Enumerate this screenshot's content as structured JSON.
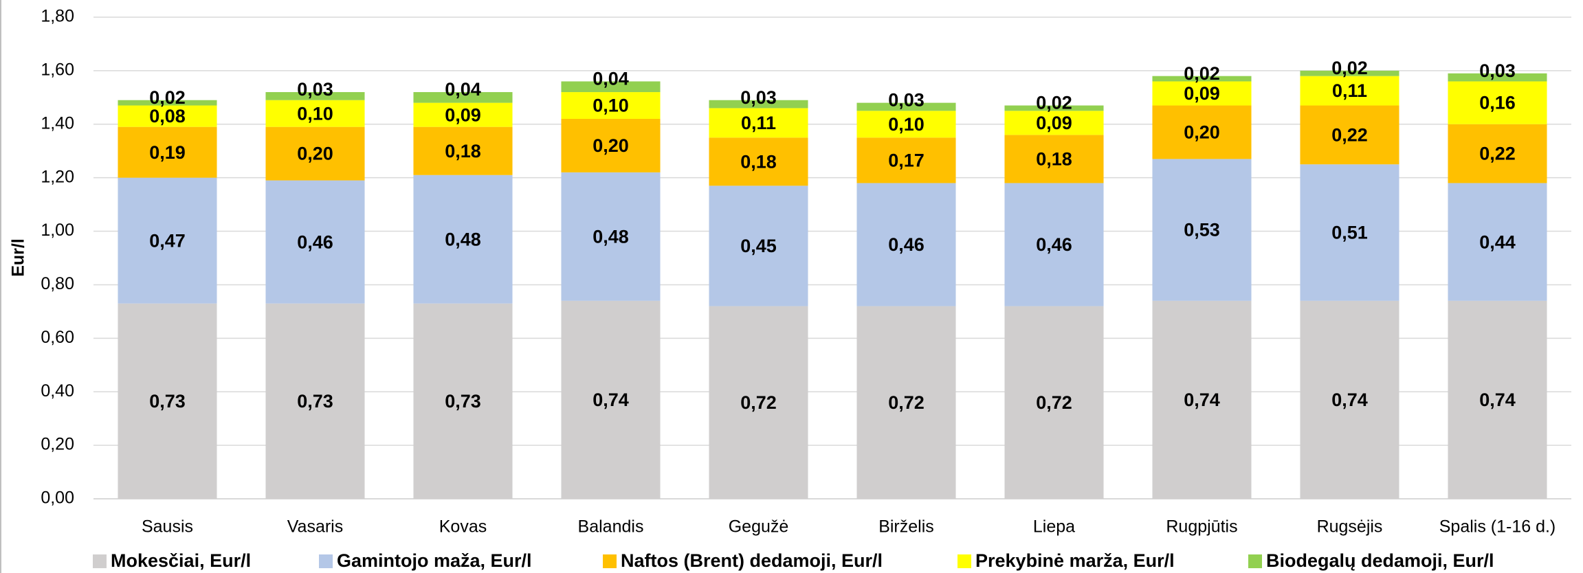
{
  "chart_data": {
    "type": "stacked_bar",
    "y_label": "Eur/l",
    "categories": [
      "Sausis",
      "Vasaris",
      "Kovas",
      "Balandis",
      "Gegužė",
      "Birželis",
      "Liepa",
      "Rugpjūtis",
      "Rugsėjis",
      "Spalis (1-16 d.)"
    ],
    "series": [
      {
        "name": "Mokesčiai, Eur/l",
        "color": "#d0cece",
        "values": [
          0.73,
          0.73,
          0.73,
          0.74,
          0.72,
          0.72,
          0.72,
          0.74,
          0.74,
          0.74
        ],
        "value_labels": [
          "0,73",
          "0,73",
          "0,73",
          "0,74",
          "0,72",
          "0,72",
          "0,72",
          "0,74",
          "0,74",
          "0,74"
        ]
      },
      {
        "name": "Gamintojo maža, Eur/l",
        "color": "#b4c7e7",
        "values": [
          0.47,
          0.46,
          0.48,
          0.48,
          0.45,
          0.46,
          0.46,
          0.53,
          0.51,
          0.44
        ],
        "value_labels": [
          "0,47",
          "0,46",
          "0,48",
          "0,48",
          "0,45",
          "0,46",
          "0,46",
          "0,53",
          "0,51",
          "0,44"
        ]
      },
      {
        "name": "Naftos (Brent) dedamoji, Eur/l",
        "color": "#ffc000",
        "values": [
          0.19,
          0.2,
          0.18,
          0.2,
          0.18,
          0.17,
          0.18,
          0.2,
          0.22,
          0.22
        ],
        "value_labels": [
          "0,19",
          "0,20",
          "0,18",
          "0,20",
          "0,18",
          "0,17",
          "0,18",
          "0,20",
          "0,22",
          "0,22"
        ]
      },
      {
        "name": "Prekybinė marža, Eur/l",
        "color": "#ffff00",
        "values": [
          0.08,
          0.1,
          0.09,
          0.1,
          0.11,
          0.1,
          0.09,
          0.09,
          0.11,
          0.16
        ],
        "value_labels": [
          "0,08",
          "0,10",
          "0,09",
          "0,10",
          "0,11",
          "0,10",
          "0,09",
          "0,09",
          "0,11",
          "0,16"
        ]
      },
      {
        "name": "Biodegalų dedamoji, Eur/l",
        "color": "#92d050",
        "values": [
          0.02,
          0.03,
          0.04,
          0.04,
          0.03,
          0.03,
          0.02,
          0.02,
          0.02,
          0.03
        ],
        "value_labels": [
          "0,02",
          "0,03",
          "0,04",
          "0,04",
          "0,03",
          "0,03",
          "0,02",
          "0,02",
          "0,02",
          "0,03"
        ]
      }
    ],
    "ylim": [
      0,
      1.8
    ],
    "yticks": [
      {
        "value": 0,
        "label": "0,00"
      },
      {
        "value": 0.2,
        "label": "0,20"
      },
      {
        "value": 0.4,
        "label": "0,40"
      },
      {
        "value": 0.6,
        "label": "0,60"
      },
      {
        "value": 0.8,
        "label": "0,80"
      },
      {
        "value": 1.0,
        "label": "1,00"
      },
      {
        "value": 1.2,
        "label": "1,20"
      },
      {
        "value": 1.4,
        "label": "1,40"
      },
      {
        "value": 1.6,
        "label": "1,60"
      },
      {
        "value": 1.8,
        "label": "1,80"
      }
    ],
    "grid": true,
    "legend": "bottom"
  }
}
